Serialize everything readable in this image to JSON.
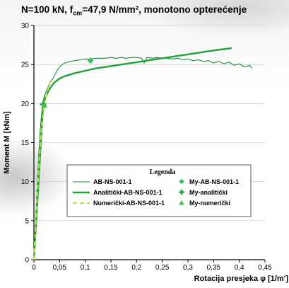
{
  "title": {
    "prefix": "N=100 kN, f",
    "sub": "cm",
    "suffix": "=47,9 N/mm², monotono opterećenje"
  },
  "colors": {
    "ab": "#1e8a3a",
    "analiticki": "#22a03a",
    "numericki": "#b8e04a",
    "marker_ab": "#3cc05a",
    "marker_analiticki": "#2aa040",
    "marker_numericki": "#40c040",
    "axis": "#000000",
    "grid": "#d0d0d0"
  },
  "chart_data": {
    "type": "line",
    "title": "N=100 kN, fcm=47,9 N/mm², monotono opterećenje",
    "xlabel": "Rotacija presjeka φ [1/m']",
    "ylabel": "Moment M [kNm]",
    "xlim": [
      0,
      0.45
    ],
    "ylim": [
      0,
      30
    ],
    "x_ticks": [
      "0",
      "0,05",
      "0,1",
      "0,15",
      "0,2",
      "0,25",
      "0,3",
      "0,35",
      "0,4",
      "0,45"
    ],
    "y_ticks": [
      "0",
      "5",
      "10",
      "15",
      "20",
      "25",
      "30"
    ],
    "grid": "horizontal",
    "legend": {
      "title": "Legenda",
      "placement": "lower-center",
      "entries_left": [
        "AB-NS-001-1",
        "Analitički-AB-NS-001-1",
        "Numerički-AB-NS-001-1"
      ],
      "entries_right": [
        "My-AB-NS-001-1",
        "My-analitički",
        "My-numerički"
      ]
    },
    "series": [
      {
        "name": "AB-NS-001-1",
        "style": "thin",
        "x": [
          0,
          0.002,
          0.004,
          0.006,
          0.008,
          0.01,
          0.012,
          0.014,
          0.016,
          0.018,
          0.02,
          0.024,
          0.028,
          0.032,
          0.036,
          0.04,
          0.045,
          0.05,
          0.055,
          0.06,
          0.07,
          0.08,
          0.09,
          0.1,
          0.11,
          0.12,
          0.13,
          0.14,
          0.15,
          0.16,
          0.17,
          0.18,
          0.19,
          0.2,
          0.21,
          0.215,
          0.22,
          0.23,
          0.24,
          0.25,
          0.26,
          0.27,
          0.28,
          0.29,
          0.3,
          0.31,
          0.32,
          0.33,
          0.34,
          0.35,
          0.36,
          0.37,
          0.38,
          0.39,
          0.4,
          0.41,
          0.42,
          0.425
        ],
        "y": [
          0,
          3.0,
          6.0,
          9.0,
          11.8,
          14.2,
          16.3,
          18.0,
          19.3,
          20.2,
          20.9,
          21.6,
          22.2,
          22.7,
          23.1,
          23.6,
          24.2,
          24.7,
          25.0,
          25.2,
          25.4,
          25.5,
          25.6,
          25.7,
          25.7,
          25.8,
          25.8,
          25.8,
          25.9,
          25.8,
          25.9,
          25.8,
          25.9,
          25.9,
          25.8,
          25.2,
          25.9,
          25.8,
          25.9,
          25.8,
          25.8,
          25.7,
          25.8,
          25.6,
          25.7,
          25.5,
          25.6,
          25.4,
          25.5,
          25.2,
          25.4,
          25.1,
          25.3,
          24.9,
          25.1,
          24.7,
          24.9,
          24.5
        ]
      },
      {
        "name": "Analitički-AB-NS-001-1",
        "style": "thick",
        "x": [
          0,
          0.018,
          0.022,
          0.026,
          0.03,
          0.035,
          0.04,
          0.05,
          0.06,
          0.08,
          0.1,
          0.12,
          0.15,
          0.2,
          0.25,
          0.3,
          0.35,
          0.385
        ],
        "y": [
          0,
          19.9,
          20.7,
          21.3,
          21.8,
          22.3,
          22.7,
          23.2,
          23.5,
          23.9,
          24.2,
          24.5,
          24.8,
          25.3,
          25.8,
          26.3,
          26.8,
          27.1
        ]
      },
      {
        "name": "Numerički-AB-NS-001-1",
        "style": "dashed",
        "x": [
          0,
          0.005,
          0.01,
          0.015,
          0.02,
          0.025,
          0.03,
          0.033
        ],
        "y": [
          0,
          6.5,
          12.5,
          17.0,
          19.8,
          21.3,
          22.4,
          23.0
        ]
      }
    ],
    "markers": [
      {
        "name": "My-AB-NS-001-1",
        "shape": "diamond",
        "x": 0.11,
        "y": 25.5
      },
      {
        "name": "My-analitički",
        "shape": "plus",
        "x": 0.018,
        "y": 19.9
      },
      {
        "name": "My-numerički",
        "shape": "triangle",
        "x": 0.02,
        "y": 19.8
      }
    ]
  }
}
